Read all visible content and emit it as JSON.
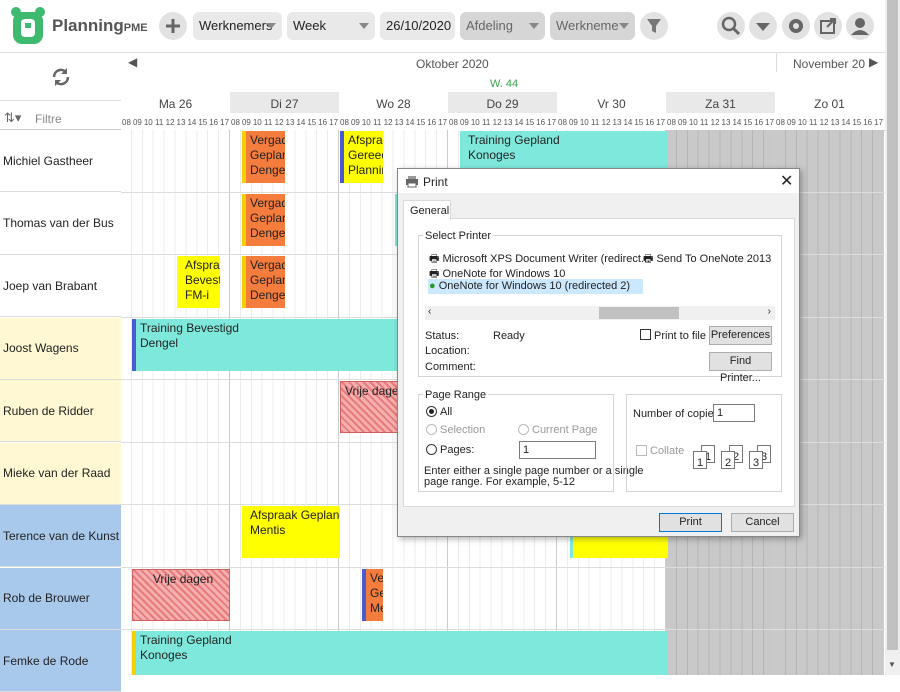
{
  "toolbar": {
    "logo": "Planning",
    "logo_suffix": "PME",
    "dropdowns": [
      "Werknemers",
      "Week",
      "26/10/2020",
      "Afdeling",
      "Werkneme"
    ]
  },
  "calendar": {
    "month": "Oktober 2020",
    "next_month": "November 20",
    "week": "W. 44",
    "filter": "Filtre",
    "days": [
      "Ma 26",
      "Di 27",
      "Wo 28",
      "Do 29",
      "Vr 30",
      "Za 31",
      "Zo 01"
    ],
    "hours": [
      "08",
      "09",
      "10",
      "11",
      "12",
      "13",
      "14",
      "15",
      "16",
      "17"
    ]
  },
  "employees": [
    {
      "name": "Michiel Gastheer",
      "color": "#ffffff"
    },
    {
      "name": "Thomas van der Bus",
      "color": "#ffffff"
    },
    {
      "name": "Joep van Brabant",
      "color": "#ffffff"
    },
    {
      "name": "Joost Wagens",
      "color": "#fff8d2"
    },
    {
      "name": "Ruben de Ridder",
      "color": "#fff8d2"
    },
    {
      "name": "Mieke van der Raad",
      "color": "#fff8d2"
    },
    {
      "name": "Terence van de Kunst",
      "color": "#a9c9ec"
    },
    {
      "name": "Rob de Brouwer",
      "color": "#a9c9ec"
    },
    {
      "name": "Femke de Rode",
      "color": "#a9c9ec"
    }
  ],
  "events": [
    {
      "lines": [
        "Vergade",
        "Geplanc",
        "Dengel"
      ],
      "color": "#f47c3c",
      "bar": "#f5d000"
    },
    {
      "lines": [
        "Afspraa",
        "Gereed",
        "Plannin"
      ],
      "color": "#ffff00",
      "bar": "#4a5bd0"
    },
    {
      "lines": [
        "Training Gepland",
        "Konoges"
      ],
      "color": "#7ee8dc",
      "bar": "#7ee8dc"
    },
    {
      "lines": [
        "Vergade",
        "Geplanc",
        "Dengel"
      ],
      "color": "#f47c3c",
      "bar": "#f5d000"
    },
    {
      "lines": [
        "Afspraa",
        "Bevestig",
        "FM-i"
      ],
      "color": "#ffff00",
      "bar": "#ffff00"
    },
    {
      "lines": [
        "Vergade",
        "Geplanc",
        "Dengel"
      ],
      "color": "#f47c3c",
      "bar": "#f5d000"
    },
    {
      "lines": [
        "Training Bevestigd",
        "Dengel"
      ],
      "color": "#7ee8dc",
      "bar": "#4a5bd0"
    },
    {
      "lines": [
        "Vrije dagen"
      ],
      "color": "hatch",
      "bar": "#e87a7a"
    },
    {
      "lines": [
        "Afspraak Gepland",
        "Mentis"
      ],
      "color": "#ffff00",
      "bar": "#ffff00"
    },
    {
      "lines": [
        "Vrije dagen"
      ],
      "color": "hatch",
      "bar": "#e87a7a"
    },
    {
      "lines": [
        "Ver",
        "Gep",
        "Me"
      ],
      "color": "#f47c3c",
      "bar": "#4a5bd0"
    },
    {
      "lines": [
        "Training Gepland",
        "Konoges"
      ],
      "color": "#7ee8dc",
      "bar": "#f5d000"
    }
  ],
  "dialog": {
    "title": "Print",
    "tab": "General",
    "select_printer": "Select Printer",
    "printers": [
      "Microsoft XPS Document Writer (redirect...",
      "Send To OneNote 2013",
      "OneNote for Windows 10",
      "OneNote for Windows 10 (redirected 2)"
    ],
    "status_label": "Status:",
    "status": "Ready",
    "location_label": "Location:",
    "comment_label": "Comment:",
    "print_to_file": "Print to file",
    "preferences": "Preferences",
    "find_printer": "Find Printer...",
    "page_range": "Page Range",
    "all": "All",
    "selection": "Selection",
    "current_page": "Current Page",
    "pages": "Pages:",
    "pages_value": "1",
    "help": [
      "Enter either a single page number or a single",
      "page range.  For example, 5-12"
    ],
    "copies_label": "Number of copies:",
    "copies": "1",
    "collate": "Collate",
    "collate_numbers": [
      "1",
      "1",
      "2",
      "2",
      "3",
      "3"
    ],
    "print": "Print",
    "cancel": "Cancel"
  }
}
